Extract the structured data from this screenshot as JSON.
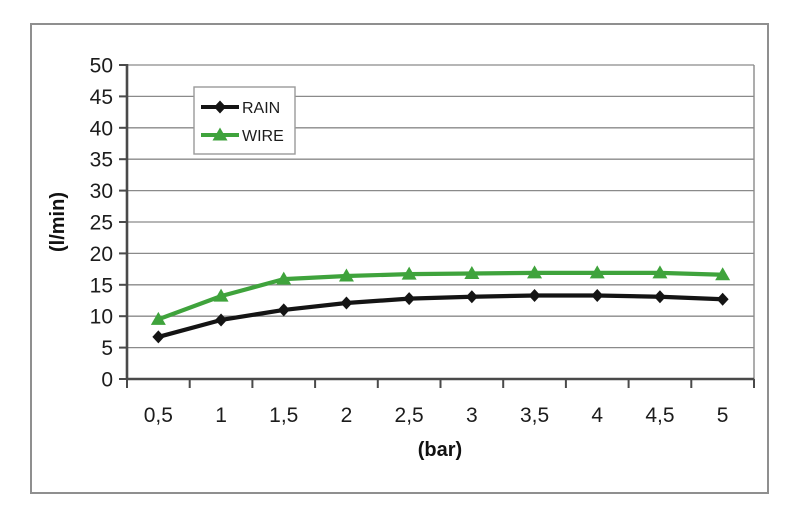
{
  "chart_data": {
    "type": "line",
    "title": "",
    "xlabel": "(bar)",
    "ylabel": "(l/min)",
    "categories": [
      "0,5",
      "1",
      "1,5",
      "2",
      "2,5",
      "3",
      "3,5",
      "4",
      "4,5",
      "5"
    ],
    "series": [
      {
        "name": "RAIN",
        "marker": "diamond",
        "color": "#141414",
        "values": [
          6.7,
          9.4,
          11.0,
          12.1,
          12.8,
          13.1,
          13.3,
          13.3,
          13.1,
          12.7
        ]
      },
      {
        "name": "WIRE",
        "marker": "triangle",
        "color": "#3fa33c",
        "values": [
          9.5,
          13.2,
          15.9,
          16.4,
          16.7,
          16.8,
          16.9,
          16.9,
          16.9,
          16.6
        ]
      }
    ],
    "ylim": [
      0,
      50
    ],
    "ytick_step": 5,
    "yticks": [
      "0",
      "5",
      "10",
      "15",
      "20",
      "25",
      "30",
      "35",
      "40",
      "45",
      "50"
    ],
    "grid": true,
    "legend_position": "top-left-inside"
  },
  "colors": {
    "gridline": "#8a8a8a",
    "axis_line": "#4a4a4a",
    "plot_border": "#8a8a8a",
    "frame_border": "#8f8f8f",
    "background": "#ffffff",
    "tick_text": "#1c1c1c",
    "rain_series": "#141414",
    "wire_series": "#3fa33c"
  }
}
